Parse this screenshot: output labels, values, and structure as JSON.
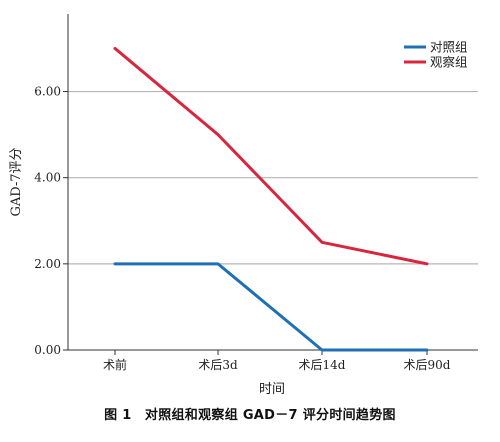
{
  "chart_data": {
    "type": "line",
    "categories": [
      "术前",
      "术后3d",
      "术后14d",
      "术后90d"
    ],
    "series": [
      {
        "name": "对照组",
        "values": [
          2.0,
          2.0,
          0.0,
          0.0
        ],
        "color": "#1f6fb4"
      },
      {
        "name": "观察组",
        "values": [
          7.0,
          5.0,
          2.5,
          2.0
        ],
        "color": "#d7263d"
      }
    ],
    "xlabel": "时间",
    "ylabel": "GAD-7评分",
    "ylim": [
      0,
      7.8
    ],
    "yticks": [
      "0.00",
      "2.00",
      "4.00",
      "6.00"
    ],
    "ytick_values": [
      0,
      2,
      4,
      6
    ],
    "grid": true,
    "legend_position": "top-right"
  },
  "caption": "图 1　对照组和观察组 GAD－7 评分时间趋势图"
}
